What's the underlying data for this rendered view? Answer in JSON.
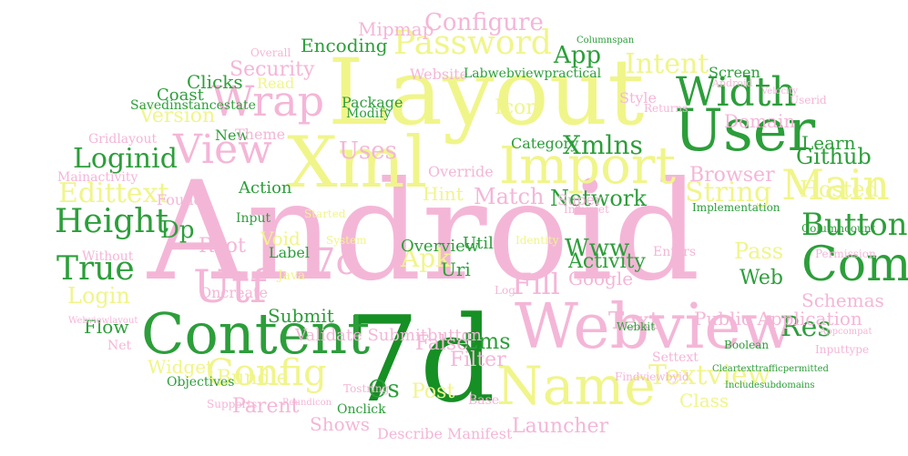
{
  "palette": {
    "pink": "#f4b6d7",
    "yellow": "#f0f58a",
    "green": "#2c9e3a",
    "dark_green": "#168f24"
  },
  "words": [
    {
      "text": "Android",
      "color": "pink"
    },
    {
      "text": "7d",
      "color": "dark_green"
    },
    {
      "text": "Layout",
      "color": "yellow"
    },
    {
      "text": "Xml",
      "color": "yellow"
    },
    {
      "text": "Import",
      "color": "yellow"
    },
    {
      "text": "User",
      "color": "green"
    },
    {
      "text": "Webview",
      "color": "pink"
    },
    {
      "text": "Content",
      "color": "green"
    },
    {
      "text": "Name",
      "color": "yellow"
    },
    {
      "text": "Com",
      "color": "green"
    },
    {
      "text": "Main",
      "color": "yellow"
    },
    {
      "text": "Width",
      "color": "green"
    },
    {
      "text": "Wrap",
      "color": "pink"
    },
    {
      "text": "View",
      "color": "pink"
    },
    {
      "text": "Password",
      "color": "yellow"
    },
    {
      "text": "Height",
      "color": "green"
    },
    {
      "text": "True",
      "color": "green"
    },
    {
      "text": "Utf",
      "color": "pink"
    },
    {
      "text": "Config",
      "color": "yellow"
    },
    {
      "text": "Edittext",
      "color": "yellow"
    },
    {
      "text": "Button",
      "color": "green"
    },
    {
      "text": "String",
      "color": "yellow"
    },
    {
      "text": "Intent",
      "color": "yellow"
    },
    {
      "text": "Configure",
      "color": "pink"
    },
    {
      "text": "Apk",
      "color": "yellow"
    },
    {
      "text": "Www",
      "color": "green"
    },
    {
      "text": "Res",
      "color": "green"
    },
    {
      "text": "Textview",
      "color": "yellow"
    },
    {
      "text": "Text",
      "color": "pink"
    },
    {
      "text": "7c",
      "color": "pink"
    },
    {
      "text": "Version",
      "color": "yellow"
    },
    {
      "text": "Loginid",
      "color": "green"
    },
    {
      "text": "Login",
      "color": "yellow"
    },
    {
      "text": "Security",
      "color": "pink"
    },
    {
      "text": "Network",
      "color": "green"
    },
    {
      "text": "Match",
      "color": "pink"
    },
    {
      "text": "Fill",
      "color": "pink"
    },
    {
      "text": "Xmlns",
      "color": "green"
    },
    {
      "text": "Github",
      "color": "green"
    },
    {
      "text": "Hosted",
      "color": "yellow"
    },
    {
      "text": "Pass",
      "color": "yellow"
    },
    {
      "text": "Activity",
      "color": "green"
    },
    {
      "text": "Public Application",
      "color": "pink"
    },
    {
      "text": "Parent",
      "color": "pink"
    },
    {
      "text": "Encoding",
      "color": "green"
    },
    {
      "text": "App",
      "color": "green"
    },
    {
      "text": "Uses",
      "color": "pink"
    },
    {
      "text": "Dp",
      "color": "green"
    },
    {
      "text": "Ems",
      "color": "green"
    },
    {
      "text": "Filter",
      "color": "pink"
    },
    {
      "text": "Browser",
      "color": "pink"
    },
    {
      "text": "Schemas",
      "color": "pink"
    },
    {
      "text": "Launcher",
      "color": "pink"
    },
    {
      "text": "Shows",
      "color": "pink"
    },
    {
      "text": "Class",
      "color": "yellow"
    },
    {
      "text": "Os",
      "color": "green"
    },
    {
      "text": "Root",
      "color": "pink"
    },
    {
      "text": "Icon",
      "color": "yellow"
    },
    {
      "text": "Mipmap",
      "color": "pink"
    },
    {
      "text": "Web",
      "color": "green"
    },
    {
      "text": "Google",
      "color": "pink"
    },
    {
      "text": "Post",
      "color": "yellow"
    },
    {
      "text": "Flow",
      "color": "green"
    },
    {
      "text": "Widget",
      "color": "yellow"
    },
    {
      "text": "Domain",
      "color": "pink"
    },
    {
      "text": "Clicks",
      "color": "green"
    },
    {
      "text": "Coast",
      "color": "green"
    },
    {
      "text": "Learn",
      "color": "green"
    },
    {
      "text": "Submit",
      "color": "green"
    },
    {
      "text": "Validate Submitbutton",
      "color": "pink"
    },
    {
      "text": "False",
      "color": "pink"
    },
    {
      "text": "Bundle",
      "color": "yellow"
    },
    {
      "text": "Void",
      "color": "yellow"
    },
    {
      "text": "Action",
      "color": "green"
    },
    {
      "text": "Hint",
      "color": "yellow"
    },
    {
      "text": "Super",
      "color": "pink"
    },
    {
      "text": "Uri",
      "color": "green"
    },
    {
      "text": "Util",
      "color": "green"
    },
    {
      "text": "Overview",
      "color": "green"
    },
    {
      "text": "Objectives",
      "color": "green"
    },
    {
      "text": "Onclick",
      "color": "green"
    },
    {
      "text": "Describe Manifest",
      "color": "pink"
    },
    {
      "text": "Category",
      "color": "green"
    },
    {
      "text": "Override",
      "color": "pink"
    },
    {
      "text": "Style",
      "color": "pink"
    },
    {
      "text": "Screen",
      "color": "green"
    },
    {
      "text": "Package",
      "color": "green"
    },
    {
      "text": "Modify",
      "color": "green"
    },
    {
      "text": "Website",
      "color": "pink"
    },
    {
      "text": "Labwebviewpractical",
      "color": "green"
    },
    {
      "text": "Savedinstancestate",
      "color": "green"
    },
    {
      "text": "Gridlayout",
      "color": "pink"
    },
    {
      "text": "Mainactivity",
      "color": "pink"
    },
    {
      "text": "New",
      "color": "green"
    },
    {
      "text": "Theme",
      "color": "pink"
    },
    {
      "text": "Read",
      "color": "yellow"
    },
    {
      "text": "Overall",
      "color": "pink"
    },
    {
      "text": "Found",
      "color": "pink"
    },
    {
      "text": "Without",
      "color": "pink"
    },
    {
      "text": "Label",
      "color": "green"
    },
    {
      "text": "Input",
      "color": "green"
    },
    {
      "text": "Oncreate",
      "color": "pink"
    },
    {
      "text": "Java",
      "color": "yellow"
    },
    {
      "text": "System",
      "color": "yellow"
    },
    {
      "text": "Log",
      "color": "pink"
    },
    {
      "text": "Settext",
      "color": "pink"
    },
    {
      "text": "Identity",
      "color": "yellow"
    },
    {
      "text": "Enters",
      "color": "pink"
    },
    {
      "text": "Internet",
      "color": "pink"
    },
    {
      "text": "Implementation",
      "color": "green"
    },
    {
      "text": "Columncount",
      "color": "green"
    },
    {
      "text": "Permission",
      "color": "pink"
    },
    {
      "text": "Appcompat",
      "color": "pink"
    },
    {
      "text": "Inputtype",
      "color": "pink"
    },
    {
      "text": "Boolean",
      "color": "green"
    },
    {
      "text": "Webkit",
      "color": "green"
    },
    {
      "text": "Findviewbyid",
      "color": "pink"
    },
    {
      "text": "Cleartexttrafficpermitted",
      "color": "green"
    },
    {
      "text": "Includesubdomains",
      "color": "green"
    },
    {
      "text": "Base",
      "color": "pink"
    },
    {
      "text": "Tostring",
      "color": "pink"
    },
    {
      "text": "Net",
      "color": "pink"
    },
    {
      "text": "Userid",
      "color": "pink"
    },
    {
      "text": "Returns",
      "color": "pink"
    },
    {
      "text": "Android",
      "color": "pink"
    },
    {
      "text": "Velocity",
      "color": "pink"
    },
    {
      "text": "Columnspan",
      "color": "green"
    },
    {
      "text": "Started",
      "color": "yellow"
    },
    {
      "text": "Supports",
      "color": "pink"
    },
    {
      "text": "Roundicon",
      "color": "pink"
    },
    {
      "text": "Webviewlayout",
      "color": "pink"
    }
  ]
}
